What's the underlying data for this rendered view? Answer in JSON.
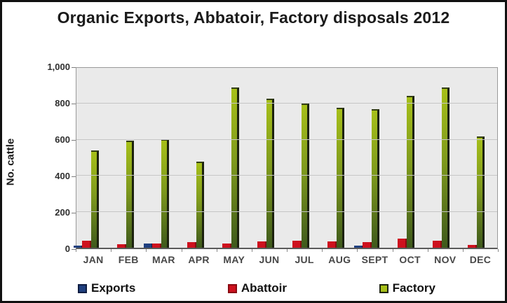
{
  "chart_data": {
    "type": "bar",
    "title": "Organic Exports, Abbatoir, Factory disposals 2012",
    "xlabel": "",
    "ylabel": "No. cattle",
    "ylim": [
      0,
      1000
    ],
    "y_tick_values": [
      0,
      200,
      400,
      600,
      800,
      1000
    ],
    "y_tick_labels": [
      "0",
      "200",
      "400",
      "600",
      "800",
      "1,000"
    ],
    "grid": "horizontal gridlines every 200, light gray plot background",
    "legend_position": "bottom",
    "categories": [
      "JAN",
      "FEB",
      "MAR",
      "APR",
      "MAY",
      "JUN",
      "JUL",
      "AUG",
      "SEPT",
      "OCT",
      "NOV",
      "DEC"
    ],
    "series": [
      {
        "name": "Exports",
        "color": "#20407f",
        "edge_color": "#0e1d42",
        "values": [
          10,
          0,
          25,
          0,
          0,
          0,
          0,
          0,
          10,
          0,
          0,
          0
        ]
      },
      {
        "name": "Abattoir",
        "color": "#ce111e",
        "edge_color": "#8a0a12",
        "values": [
          40,
          20,
          25,
          30,
          25,
          35,
          40,
          35,
          30,
          50,
          40,
          15
        ]
      },
      {
        "name": "Factory",
        "color_top": "#a6bf19",
        "color_bottom": "#3e591c",
        "edge_color": "#1c220e",
        "values": [
          540,
          595,
          605,
          480,
          890,
          830,
          800,
          780,
          770,
          845,
          890,
          620
        ]
      }
    ],
    "colors": {
      "plot_background": "#eaeaea",
      "gridline": "#c6c6c6",
      "plot_border": "#9a9a9a",
      "axis_line": "#5a5a5a",
      "outer_border": "#111111",
      "text": "#1b1b1b"
    }
  }
}
